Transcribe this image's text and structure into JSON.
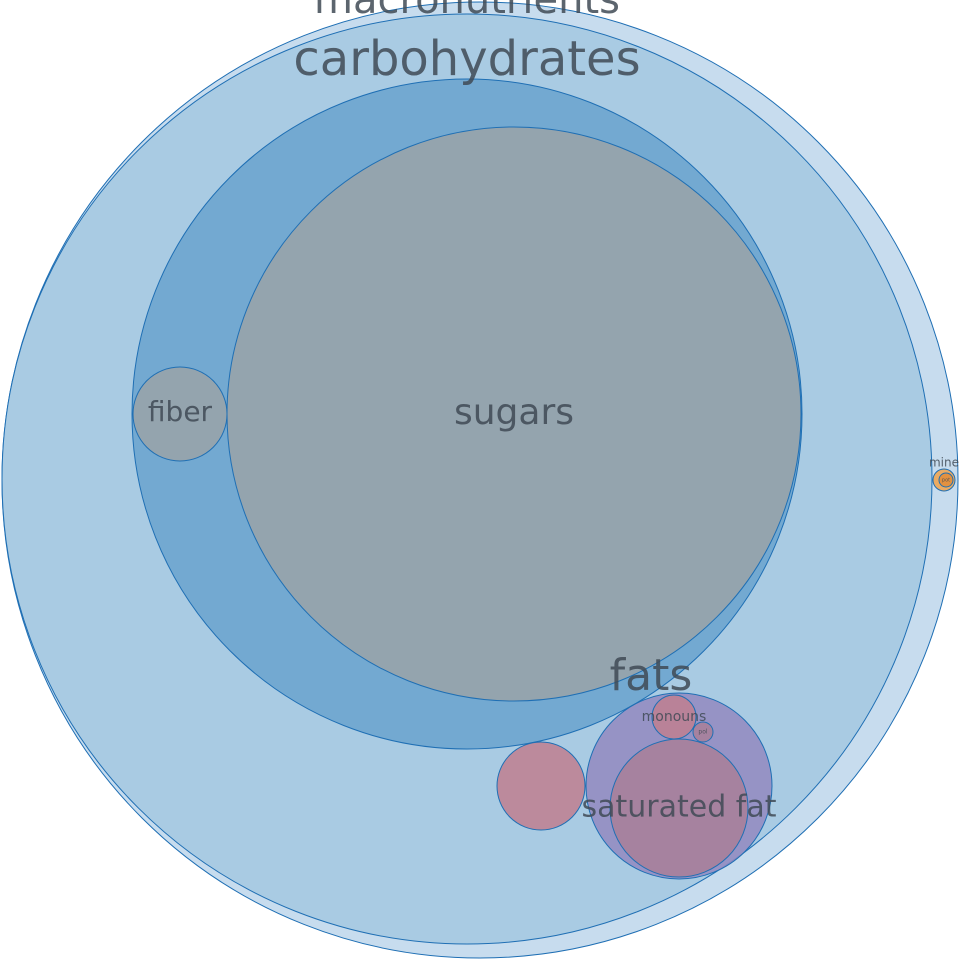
{
  "chart_data": {
    "type": "bubble",
    "nodes": [
      {
        "id": "macronutrients",
        "label": "macronutrients",
        "parent": null,
        "color": "#a9cbe3"
      },
      {
        "id": "carbohydrates",
        "label": "carbohydrates",
        "parent": "macronutrients",
        "color": "#8fb8da"
      },
      {
        "id": "carbs-inner",
        "label": "",
        "parent": "carbohydrates",
        "color": "#6aa3ce"
      },
      {
        "id": "sugars",
        "label": "sugars",
        "parent": "carbohydrates",
        "color": "#9aa3a8"
      },
      {
        "id": "fiber",
        "label": "fiber",
        "parent": "carbohydrates",
        "color": "#9aa3a8"
      },
      {
        "id": "proteins",
        "label": "",
        "parent": "macronutrients",
        "color": "#c07f8f"
      },
      {
        "id": "fats",
        "label": "fats",
        "parent": "macronutrients",
        "color": "#9389c0"
      },
      {
        "id": "saturated-fat",
        "label": "saturated fat",
        "parent": "fats",
        "color": "#a97f98"
      },
      {
        "id": "monounsaturated-fat",
        "label": "monouns",
        "parent": "fats",
        "color": "#c07f8f"
      },
      {
        "id": "polyunsaturated-fat",
        "label": "pol",
        "parent": "fats",
        "color": "#a97f98"
      },
      {
        "id": "minerals",
        "label": "mine",
        "parent": null,
        "color": "#f0a24a"
      },
      {
        "id": "minerals-sub",
        "label": "pot",
        "parent": "minerals",
        "color": "#e08c3a"
      }
    ]
  }
}
